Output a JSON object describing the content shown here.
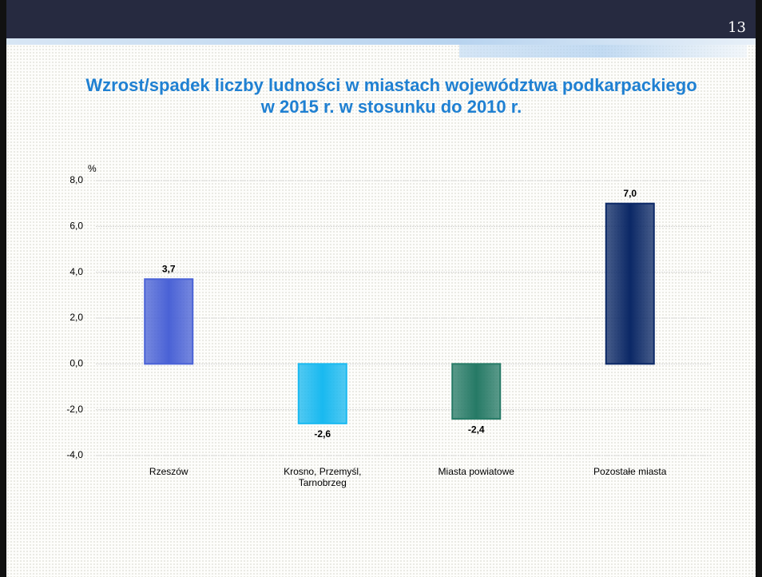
{
  "slide_number": "13",
  "chart_data": {
    "type": "bar",
    "title": "Wzrost/spadek liczby ludności w miastach województwa podkarpackiego",
    "subtitle": "w 2015 r. w stosunku do 2010 r.",
    "y_label": "%",
    "categories": [
      "Rzeszów",
      "Krosno, Przemyśl, Tarnobrzeg",
      "Miasta powiatowe",
      "Pozostałe miasta"
    ],
    "values": [
      3.7,
      -2.6,
      -2.4,
      7.0
    ],
    "value_labels": [
      "3,7",
      "-2,6",
      "-2,4",
      "7,0"
    ],
    "colors": [
      "#4a62d6",
      "#19b9f0",
      "#267a66",
      "#0b2866"
    ],
    "ylim": [
      -4,
      8
    ],
    "yticks": [
      {
        "value": -4,
        "label": "-4,0"
      },
      {
        "value": -2,
        "label": "-2,0"
      },
      {
        "value": 0,
        "label": "0,0"
      },
      {
        "value": 2,
        "label": "2,0"
      },
      {
        "value": 4,
        "label": "4,0"
      },
      {
        "value": 6,
        "label": "6,0"
      },
      {
        "value": 8,
        "label": "8,0"
      }
    ],
    "grid": true
  }
}
